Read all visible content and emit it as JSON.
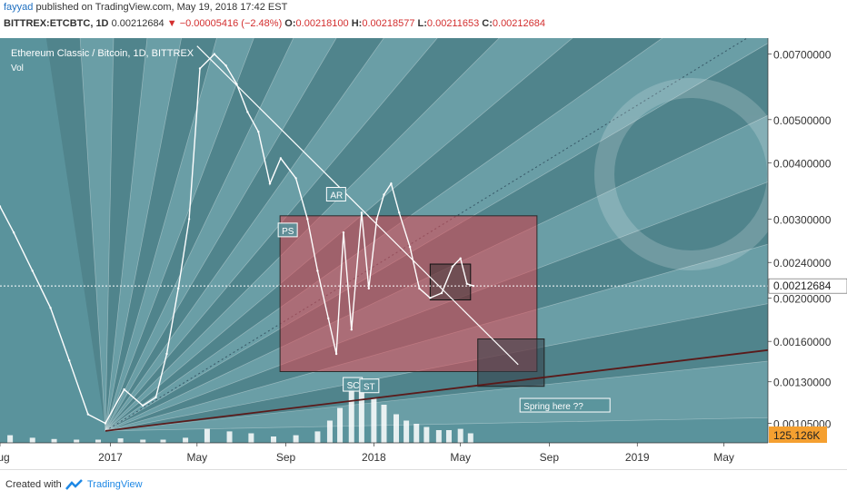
{
  "header": {
    "author": "fayyad",
    "published": "published on TradingView.com, May 19, 2018 17:42 EST",
    "symbol": "BITTREX:ETCBTC, 1D",
    "last": "0.00212684",
    "change": "▼ −0.00005416 (−2.48%)",
    "o_label": "O:",
    "o_value": "0.00218100",
    "h_label": "H:",
    "h_value": "0.00218577",
    "l_label": "L:",
    "l_value": "0.00211653",
    "c_label": "C:",
    "c_value": "0.00212684"
  },
  "chart_info": {
    "title": "Ethereum Classic / Bitcoin, 1D, BITTREX",
    "volume_label": "Vol"
  },
  "colors": {
    "background": "#5a939c",
    "box": "#e05058",
    "price_line": "#ffffff",
    "volume_badge": "#f5a030",
    "axis_text": "#333333"
  },
  "current_price_label": "0.00212684",
  "volume_badge": "125.126K",
  "annotations": [
    "PS",
    "AR",
    "SC",
    "ST",
    "Spring here ??"
  ],
  "footer": {
    "created_with": "Created with",
    "brand": "TradingView"
  },
  "chart_data": {
    "type": "line",
    "title": "Ethereum Classic / Bitcoin, 1D, BITTREX",
    "y_scale": "log",
    "ylim": [
      0.00095,
      0.0076
    ],
    "xlim": [
      "2016-08-01",
      "2019-07-01"
    ],
    "y_ticks": [
      "0.00700000",
      "0.00500000",
      "0.00400000",
      "0.00300000",
      "0.00240000",
      "0.00200000",
      "0.00160000",
      "0.00130000",
      "0.00105000"
    ],
    "x_ticks": [
      {
        "label": "Aug",
        "date": "2016-08-01"
      },
      {
        "label": "2017",
        "date": "2017-01-01"
      },
      {
        "label": "May",
        "date": "2017-05-01"
      },
      {
        "label": "Sep",
        "date": "2017-09-01"
      },
      {
        "label": "2018",
        "date": "2018-01-01"
      },
      {
        "label": "May",
        "date": "2018-05-01"
      },
      {
        "label": "Sep",
        "date": "2018-09-01"
      },
      {
        "label": "2019",
        "date": "2019-01-01"
      },
      {
        "label": "May",
        "date": "2019-05-01"
      }
    ],
    "series": [
      {
        "name": "ETCBTC",
        "x": [
          "2016-08-01",
          "2016-08-20",
          "2016-09-15",
          "2016-10-10",
          "2016-11-05",
          "2016-12-01",
          "2016-12-25",
          "2017-01-20",
          "2017-02-15",
          "2017-03-05",
          "2017-03-20",
          "2017-04-05",
          "2017-04-20",
          "2017-05-05",
          "2017-05-25",
          "2017-06-10",
          "2017-06-25",
          "2017-07-10",
          "2017-07-25",
          "2017-08-10",
          "2017-08-25",
          "2017-09-15",
          "2017-10-01",
          "2017-10-15",
          "2017-10-30",
          "2017-11-10",
          "2017-11-20",
          "2017-12-01",
          "2017-12-15",
          "2017-12-25",
          "2018-01-05",
          "2018-01-15",
          "2018-01-25",
          "2018-02-05",
          "2018-02-20",
          "2018-03-05",
          "2018-03-20",
          "2018-04-05",
          "2018-04-20",
          "2018-05-01",
          "2018-05-10",
          "2018-05-19"
        ],
        "y": [
          0.0032,
          0.0028,
          0.0023,
          0.0019,
          0.00145,
          0.0011,
          0.00105,
          0.00125,
          0.00115,
          0.0012,
          0.0015,
          0.0021,
          0.003,
          0.0065,
          0.007,
          0.0066,
          0.006,
          0.0052,
          0.0047,
          0.0036,
          0.0041,
          0.0037,
          0.003,
          0.0023,
          0.0018,
          0.0015,
          0.0028,
          0.0017,
          0.0031,
          0.0021,
          0.003,
          0.0034,
          0.0036,
          0.0031,
          0.0026,
          0.0021,
          0.002,
          0.00205,
          0.00235,
          0.00245,
          0.00215,
          0.00212684
        ]
      }
    ],
    "annotation_labels": [
      {
        "text": "PS",
        "x": "2017-08-24",
        "y": 0.00283
      },
      {
        "text": "AR",
        "x": "2017-10-30",
        "y": 0.0034
      },
      {
        "text": "SC",
        "x": "2017-11-22",
        "y": 0.00128
      },
      {
        "text": "ST",
        "x": "2017-12-15",
        "y": 0.00127
      },
      {
        "text": "Spring here ??",
        "x": "2018-07-25",
        "y": 0.00115
      }
    ],
    "rectangles": [
      {
        "name": "accumulation-range",
        "x0": "2017-08-24",
        "x1": "2018-08-15",
        "y0": 0.00137,
        "y1": 0.00305
      },
      {
        "name": "recent-range",
        "x0": "2018-03-20",
        "x1": "2018-05-15",
        "y0": 0.00198,
        "y1": 0.00238
      },
      {
        "name": "spring-zone",
        "x0": "2018-05-25",
        "x1": "2018-08-25",
        "y0": 0.00127,
        "y1": 0.00162
      }
    ],
    "trendlines": [
      {
        "name": "descending-line",
        "x0": "2017-05-01",
        "y0": 0.0073,
        "x1": "2018-07-20",
        "y1": 0.00142
      },
      {
        "name": "support-line",
        "x0": "2016-12-25",
        "y0": 0.00101,
        "x1": "2019-07-01",
        "y1": 0.00153
      }
    ],
    "volume": {
      "latest": "125.126K",
      "x": [
        "2016-08-15",
        "2016-09-15",
        "2016-10-15",
        "2016-11-15",
        "2016-12-15",
        "2017-01-15",
        "2017-02-15",
        "2017-03-15",
        "2017-04-15",
        "2017-05-15",
        "2017-06-15",
        "2017-07-15",
        "2017-08-15",
        "2017-09-15",
        "2017-10-15",
        "2017-11-01",
        "2017-11-15",
        "2017-12-01",
        "2017-12-15",
        "2018-01-01",
        "2018-01-15",
        "2018-02-01",
        "2018-02-15",
        "2018-03-01",
        "2018-03-15",
        "2018-04-01",
        "2018-04-15",
        "2018-05-01",
        "2018-05-15"
      ],
      "values": [
        0.12,
        0.08,
        0.06,
        0.05,
        0.05,
        0.07,
        0.05,
        0.05,
        0.08,
        0.22,
        0.18,
        0.15,
        0.1,
        0.12,
        0.18,
        0.35,
        0.55,
        0.95,
        0.8,
        0.7,
        0.6,
        0.45,
        0.35,
        0.3,
        0.25,
        0.2,
        0.2,
        0.22,
        0.15
      ]
    }
  }
}
